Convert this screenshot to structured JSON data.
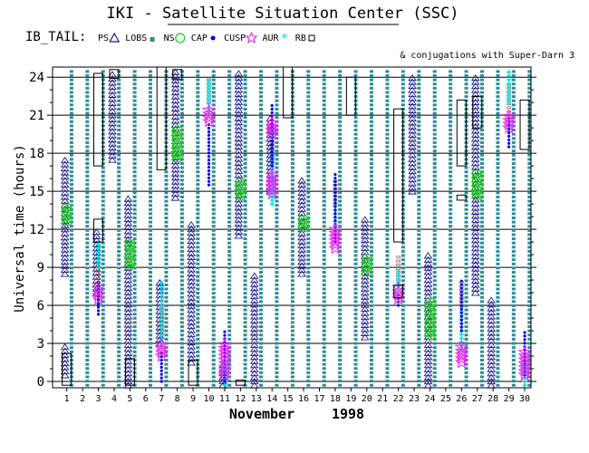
{
  "title": "IKI - Satellite Situation Center (SSC)",
  "dataset": "IB_TAIL:",
  "subtitle": "& conjugations with Super-Darn 3",
  "colors": {
    "ns": "#2e8b96",
    "ps": "#1a1a8a",
    "lobs": "#1a1a8a",
    "cusp": "#0000ee",
    "cap": "#22cc22",
    "aur": "#ee22ee",
    "cyan": "#00dddd",
    "rb": "#000000",
    "brown": "#8b5a5a"
  },
  "legend": [
    {
      "key": "ps",
      "label": "PS",
      "marker": "triangle-icon"
    },
    {
      "key": "lobs",
      "label": "LOBS",
      "marker": "square-dot-icon"
    },
    {
      "key": "ns",
      "label": "NS",
      "marker": "circle-icon"
    },
    {
      "key": "cap",
      "label": "CAP",
      "marker": "dot-icon"
    },
    {
      "key": "cusp",
      "label": "CUSP",
      "marker": "star-icon"
    },
    {
      "key": "aur",
      "label": "AUR",
      "marker": "asterisk-icon"
    },
    {
      "key": "rb",
      "label": "RB",
      "marker": "square-icon"
    }
  ],
  "chart_data": {
    "type": "timeline",
    "ylabel": "Universal time (hours)",
    "xlabel_month": "November",
    "xlabel_year": "1998",
    "yticks": [
      0,
      3,
      6,
      9,
      12,
      15,
      18,
      21,
      24
    ],
    "ylim": [
      -0.5,
      24.8
    ],
    "days": [
      1,
      2,
      3,
      4,
      5,
      6,
      7,
      8,
      9,
      10,
      11,
      12,
      13,
      14,
      15,
      16,
      17,
      18,
      19,
      20,
      21,
      22,
      23,
      24,
      25,
      26,
      27,
      28,
      29,
      30
    ],
    "ns_columns": [
      1.3,
      2.3,
      3.3,
      4.3,
      5.3,
      6.3,
      7.3,
      8.3,
      9.3,
      10.3,
      11.3,
      12.3,
      13.3,
      14.3,
      15.3,
      16.3,
      17.3,
      18.3,
      19.3,
      20.3,
      21.3,
      22.3,
      23.3,
      24.3,
      25.3,
      26.3,
      27.3,
      28.3,
      29.3,
      30.3
    ],
    "triangles": [
      {
        "day": 1,
        "from": 0.5,
        "to": 3
      },
      {
        "day": 1,
        "from": 8.5,
        "to": 17.5
      },
      {
        "day": 3,
        "from": 7,
        "to": 12
      },
      {
        "day": 4,
        "from": 17.5,
        "to": 24.5
      },
      {
        "day": 5,
        "from": -0.3,
        "to": 14.5
      },
      {
        "day": 7,
        "from": 3,
        "to": 8
      },
      {
        "day": 8,
        "from": 14.5,
        "to": 24.5
      },
      {
        "day": 9,
        "from": 1.5,
        "to": 12.5
      },
      {
        "day": 11,
        "from": -0.3,
        "to": 1.5
      },
      {
        "day": 12,
        "from": 11.5,
        "to": 24.5
      },
      {
        "day": 13,
        "from": -0.3,
        "to": 8.5
      },
      {
        "day": 14,
        "from": 15,
        "to": 21
      },
      {
        "day": 16,
        "from": 8.5,
        "to": 16
      },
      {
        "day": 20,
        "from": 3.5,
        "to": 13
      },
      {
        "day": 23,
        "from": 15,
        "to": 24
      },
      {
        "day": 24,
        "from": -0.3,
        "to": 10
      },
      {
        "day": 27,
        "from": 7,
        "to": 24
      },
      {
        "day": 28,
        "from": -0.3,
        "to": 6.5
      }
    ],
    "cusp": [
      {
        "day": 3,
        "from": 5.3,
        "to": 8
      },
      {
        "day": 7,
        "from": 0,
        "to": 2.5
      },
      {
        "day": 10,
        "from": 15.5,
        "to": 20.5
      },
      {
        "day": 11,
        "from": 0,
        "to": 4
      },
      {
        "day": 14,
        "from": 17,
        "to": 22
      },
      {
        "day": 18,
        "from": 11,
        "to": 16.5
      },
      {
        "day": 22,
        "from": 6,
        "to": 7
      },
      {
        "day": 26,
        "from": 4,
        "to": 8
      },
      {
        "day": 29,
        "from": 18.5,
        "to": 21
      },
      {
        "day": 30,
        "from": 0.5,
        "to": 4
      }
    ],
    "cyan": [
      {
        "day": 3,
        "from": 9,
        "to": 11
      },
      {
        "day": 7,
        "from": 3,
        "to": 8
      },
      {
        "day": 10,
        "from": 21,
        "to": 24
      },
      {
        "day": 11,
        "from": -0.3,
        "to": 1.5
      },
      {
        "day": 14,
        "from": 14,
        "to": 18
      },
      {
        "day": 18,
        "from": 12,
        "to": 14
      },
      {
        "day": 22,
        "from": 7.5,
        "to": 9
      },
      {
        "day": 26,
        "from": 2.5,
        "to": 6
      },
      {
        "day": 29,
        "from": 22,
        "to": 24.5
      },
      {
        "day": 30,
        "from": -0.3,
        "to": 1.5
      }
    ],
    "brown": [
      {
        "day": 3,
        "from": 7.5,
        "to": 9.5
      },
      {
        "day": 7,
        "from": 4,
        "to": 6
      },
      {
        "day": 10,
        "from": 22,
        "to": 24
      },
      {
        "day": 14,
        "from": 17,
        "to": 19
      },
      {
        "day": 18,
        "from": 14,
        "to": 16
      },
      {
        "day": 22,
        "from": 8,
        "to": 10
      },
      {
        "day": 26,
        "from": 6,
        "to": 8
      },
      {
        "day": 29,
        "from": 21,
        "to": 23.5
      }
    ],
    "cap": [
      {
        "day": 1,
        "from": 12.5,
        "to": 14
      },
      {
        "day": 5,
        "from": 9,
        "to": 11
      },
      {
        "day": 8,
        "from": 17.5,
        "to": 20
      },
      {
        "day": 12,
        "from": 14.5,
        "to": 16
      },
      {
        "day": 16,
        "from": 12,
        "to": 13
      },
      {
        "day": 20,
        "from": 8.5,
        "to": 10
      },
      {
        "day": 24,
        "from": 3.5,
        "to": 6.5
      },
      {
        "day": 27,
        "from": 14.5,
        "to": 16.5
      }
    ],
    "aur": [
      {
        "day": 3,
        "from": 6.5,
        "to": 7.5
      },
      {
        "day": 7,
        "from": 2,
        "to": 3
      },
      {
        "day": 10,
        "from": 20.5,
        "to": 21.5
      },
      {
        "day": 11,
        "from": 0.5,
        "to": 3
      },
      {
        "day": 14,
        "from": 14.8,
        "to": 16.3
      },
      {
        "day": 14,
        "from": 19.5,
        "to": 20.5
      },
      {
        "day": 18,
        "from": 10.5,
        "to": 12
      },
      {
        "day": 22,
        "from": 6.5,
        "to": 7.5
      },
      {
        "day": 26,
        "from": 1.5,
        "to": 2.8
      },
      {
        "day": 29,
        "from": 20,
        "to": 21
      },
      {
        "day": 30,
        "from": 0.5,
        "to": 2.5
      }
    ],
    "rb_boxes": [
      {
        "day": 1,
        "from": -0.3,
        "to": 2.2
      },
      {
        "day": 3,
        "from": 11,
        "to": 12.8
      },
      {
        "day": 3,
        "from": 17,
        "to": 24.3
      },
      {
        "day": 4,
        "from": 23.9,
        "to": 24.6
      },
      {
        "day": 5,
        "from": -0.3,
        "to": 1.8
      },
      {
        "day": 7,
        "from": 16.7,
        "to": 24.8
      },
      {
        "day": 8,
        "from": 23.8,
        "to": 24.6
      },
      {
        "day": 9,
        "from": -0.3,
        "to": 1.7
      },
      {
        "day": 12,
        "from": -0.3,
        "to": 0.1
      },
      {
        "day": 15,
        "from": 20.8,
        "to": 24.8
      },
      {
        "day": 19,
        "from": 21,
        "to": 24
      },
      {
        "day": 22,
        "from": 11,
        "to": 21.5
      },
      {
        "day": 22,
        "from": 6.6,
        "to": 7.6
      },
      {
        "day": 26,
        "from": 17,
        "to": 22.2
      },
      {
        "day": 26,
        "from": 14.3,
        "to": 14.7
      },
      {
        "day": 27,
        "from": 20,
        "to": 22.5
      },
      {
        "day": 30,
        "from": 18.3,
        "to": 22.2
      }
    ]
  }
}
